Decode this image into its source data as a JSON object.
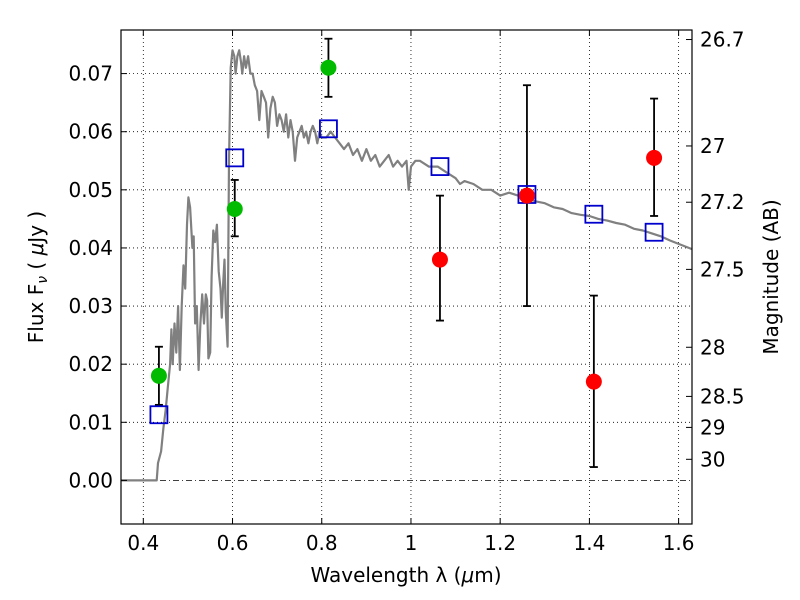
{
  "chart_data": {
    "type": "scatter",
    "xlabel_text": "Wavelength  λ (",
    "xlabel_unit_symbol": "μ",
    "xlabel_unit_tail": "m)",
    "ylabel_text": "Flux  F",
    "ylabel_sub": "ν",
    "ylabel_unit_open": "  ( ",
    "ylabel_unit_symbol": "μ",
    "ylabel_unit_tail": "Jy )",
    "y2label": "Magnitude (AB)",
    "xlim": [
      0.35,
      1.63
    ],
    "ylim": [
      -0.0075,
      0.0775
    ],
    "xticks": [
      0.4,
      0.6,
      0.8,
      1.0,
      1.2,
      1.4,
      1.6
    ],
    "xtick_labels": [
      "0.4",
      "0.6",
      "0.8",
      "1",
      "1.2",
      "1.4",
      "1.6"
    ],
    "yticks": [
      0.0,
      0.01,
      0.02,
      0.03,
      0.04,
      0.05,
      0.06,
      0.07
    ],
    "ytick_labels": [
      "0.00",
      "0.01",
      "0.02",
      "0.03",
      "0.04",
      "0.05",
      "0.06",
      "0.07"
    ],
    "mag_ticks": [
      26.7,
      27,
      27.2,
      27.5,
      28,
      28.5,
      29,
      30
    ],
    "mag_tick_labels": [
      "26.7",
      "27",
      "27.2",
      "27.5",
      "28",
      "28.5",
      "29",
      "30"
    ],
    "grid": true,
    "series": [
      {
        "kind": "model-spectrum",
        "color": "#808080",
        "points": [
          [
            0.35,
            0.0
          ],
          [
            0.43,
            0.0
          ],
          [
            0.433,
            0.003
          ],
          [
            0.44,
            0.005
          ],
          [
            0.445,
            0.009
          ],
          [
            0.45,
            0.012
          ],
          [
            0.455,
            0.016
          ],
          [
            0.46,
            0.02
          ],
          [
            0.463,
            0.026
          ],
          [
            0.466,
            0.02
          ],
          [
            0.47,
            0.027
          ],
          [
            0.474,
            0.022
          ],
          [
            0.478,
            0.03
          ],
          [
            0.482,
            0.019
          ],
          [
            0.486,
            0.03
          ],
          [
            0.49,
            0.037
          ],
          [
            0.494,
            0.033
          ],
          [
            0.498,
            0.044
          ],
          [
            0.501,
            0.0487
          ],
          [
            0.505,
            0.047
          ],
          [
            0.51,
            0.04
          ],
          [
            0.513,
            0.042
          ],
          [
            0.516,
            0.027
          ],
          [
            0.52,
            0.03
          ],
          [
            0.524,
            0.019
          ],
          [
            0.528,
            0.027
          ],
          [
            0.532,
            0.032
          ],
          [
            0.536,
            0.027
          ],
          [
            0.54,
            0.032
          ],
          [
            0.543,
            0.031
          ],
          [
            0.546,
            0.021
          ],
          [
            0.55,
            0.022
          ],
          [
            0.553,
            0.035
          ],
          [
            0.557,
            0.043
          ],
          [
            0.561,
            0.041
          ],
          [
            0.565,
            0.044
          ],
          [
            0.569,
            0.036
          ],
          [
            0.573,
            0.033
          ],
          [
            0.576,
            0.028
          ],
          [
            0.579,
            0.034
          ],
          [
            0.582,
            0.038
          ],
          [
            0.585,
            0.029
          ],
          [
            0.589,
            0.023
          ],
          [
            0.592,
            0.055
          ],
          [
            0.596,
            0.071
          ],
          [
            0.6,
            0.074
          ],
          [
            0.604,
            0.073
          ],
          [
            0.607,
            0.07
          ],
          [
            0.611,
            0.073
          ],
          [
            0.615,
            0.074
          ],
          [
            0.619,
            0.072
          ],
          [
            0.622,
            0.07
          ],
          [
            0.626,
            0.073
          ],
          [
            0.63,
            0.071
          ],
          [
            0.635,
            0.073
          ],
          [
            0.64,
            0.07
          ],
          [
            0.645,
            0.07
          ],
          [
            0.65,
            0.068
          ],
          [
            0.655,
            0.067
          ],
          [
            0.66,
            0.062
          ],
          [
            0.665,
            0.067
          ],
          [
            0.67,
            0.066
          ],
          [
            0.675,
            0.065
          ],
          [
            0.68,
            0.059
          ],
          [
            0.685,
            0.064
          ],
          [
            0.69,
            0.066
          ],
          [
            0.695,
            0.065
          ],
          [
            0.7,
            0.061
          ],
          [
            0.705,
            0.063
          ],
          [
            0.71,
            0.062
          ],
          [
            0.715,
            0.06
          ],
          [
            0.72,
            0.063
          ],
          [
            0.725,
            0.059
          ],
          [
            0.73,
            0.062
          ],
          [
            0.735,
            0.06
          ],
          [
            0.74,
            0.055
          ],
          [
            0.745,
            0.059
          ],
          [
            0.75,
            0.06
          ],
          [
            0.755,
            0.061
          ],
          [
            0.76,
            0.059
          ],
          [
            0.765,
            0.06
          ],
          [
            0.77,
            0.058
          ],
          [
            0.775,
            0.06
          ],
          [
            0.78,
            0.061
          ],
          [
            0.785,
            0.06
          ],
          [
            0.79,
            0.058
          ],
          [
            0.795,
            0.06
          ],
          [
            0.8,
            0.059
          ],
          [
            0.81,
            0.059
          ],
          [
            0.82,
            0.06
          ],
          [
            0.83,
            0.059
          ],
          [
            0.84,
            0.058
          ],
          [
            0.85,
            0.057
          ],
          [
            0.86,
            0.058
          ],
          [
            0.87,
            0.056
          ],
          [
            0.88,
            0.057
          ],
          [
            0.89,
            0.055
          ],
          [
            0.9,
            0.057
          ],
          [
            0.91,
            0.055
          ],
          [
            0.92,
            0.056
          ],
          [
            0.93,
            0.054
          ],
          [
            0.94,
            0.055
          ],
          [
            0.95,
            0.056
          ],
          [
            0.96,
            0.054
          ],
          [
            0.97,
            0.055
          ],
          [
            0.98,
            0.054
          ],
          [
            0.99,
            0.055
          ],
          [
            0.995,
            0.05
          ],
          [
            1.0,
            0.054
          ],
          [
            1.01,
            0.055
          ],
          [
            1.02,
            0.055
          ],
          [
            1.04,
            0.054
          ],
          [
            1.06,
            0.054
          ],
          [
            1.08,
            0.053
          ],
          [
            1.1,
            0.052
          ],
          [
            1.11,
            0.051
          ],
          [
            1.12,
            0.0515
          ],
          [
            1.14,
            0.051
          ],
          [
            1.16,
            0.05
          ],
          [
            1.18,
            0.05
          ],
          [
            1.2,
            0.049
          ],
          [
            1.22,
            0.0495
          ],
          [
            1.24,
            0.049
          ],
          [
            1.26,
            0.0485
          ],
          [
            1.28,
            0.048
          ],
          [
            1.3,
            0.0477
          ],
          [
            1.32,
            0.047
          ],
          [
            1.34,
            0.0467
          ],
          [
            1.36,
            0.046
          ],
          [
            1.38,
            0.0457
          ],
          [
            1.4,
            0.0455
          ],
          [
            1.42,
            0.045
          ],
          [
            1.44,
            0.0447
          ],
          [
            1.46,
            0.0443
          ],
          [
            1.48,
            0.044
          ],
          [
            1.5,
            0.0433
          ],
          [
            1.52,
            0.043
          ],
          [
            1.54,
            0.0425
          ],
          [
            1.56,
            0.042
          ],
          [
            1.58,
            0.0413
          ],
          [
            1.6,
            0.0407
          ],
          [
            1.63,
            0.0398
          ]
        ]
      },
      {
        "kind": "model-bands",
        "marker": "open-square",
        "color": "#0000cc",
        "x": [
          0.435,
          0.605,
          0.815,
          1.065,
          1.26,
          1.41,
          1.545
        ],
        "y": [
          0.0113,
          0.0555,
          0.0605,
          0.054,
          0.0492,
          0.0458,
          0.0427
        ]
      },
      {
        "kind": "observed-detections",
        "marker": "filled-circle",
        "color": "#00bb00",
        "x": [
          0.435,
          0.605,
          0.815
        ],
        "y": [
          0.018,
          0.0467,
          0.071
        ],
        "yerr_low": [
          0.013,
          0.042,
          0.066
        ],
        "yerr_high": [
          0.023,
          0.0517,
          0.076
        ]
      },
      {
        "kind": "observed-limits",
        "marker": "filled-circle",
        "color": "#ff0000",
        "x": [
          1.065,
          1.26,
          1.41,
          1.545
        ],
        "y": [
          0.038,
          0.049,
          0.017,
          0.0555
        ],
        "yerr_low": [
          0.0275,
          0.03,
          0.0023,
          0.0455
        ],
        "yerr_high": [
          0.049,
          0.068,
          0.0318,
          0.0657
        ]
      }
    ]
  }
}
